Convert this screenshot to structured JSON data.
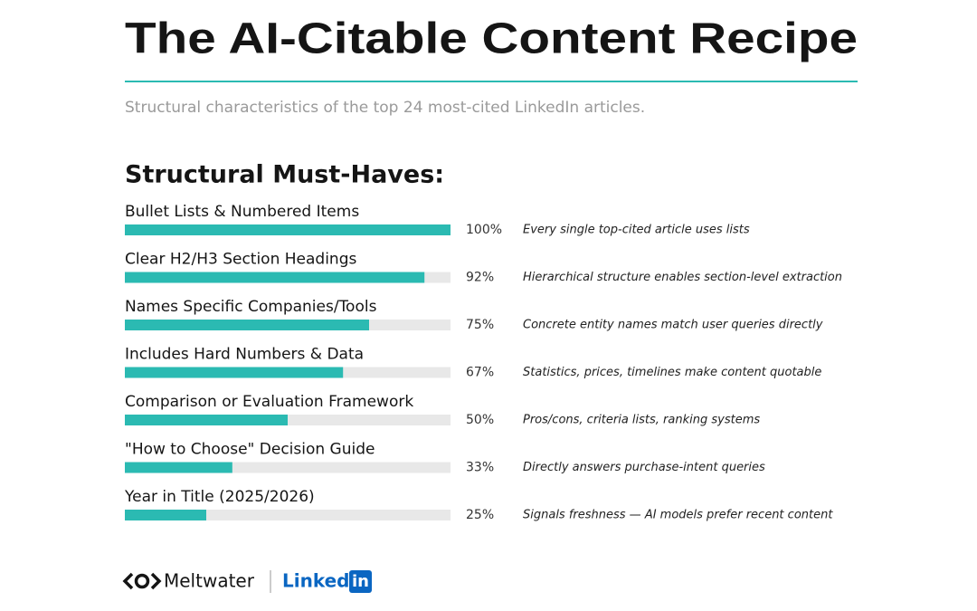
{
  "chart_data": {
    "type": "hbar",
    "title": "The AI-Citable Content Recipe",
    "subtitle": "Structural characteristics of the top 24 most-cited LinkedIn articles.",
    "section_heading": "Structural Must-Haves:",
    "categories": [
      "Bullet Lists & Numbered Items",
      "Clear H2/H3 Section Headings",
      "Names Specific Companies/Tools",
      "Includes Hard Numbers & Data",
      "Comparison or Evaluation Framework",
      "\"How to Choose\" Decision Guide",
      "Year in Title (2025/2026)"
    ],
    "values": [
      100,
      92,
      75,
      67,
      50,
      33,
      25
    ],
    "value_labels": [
      "100%",
      "92%",
      "75%",
      "67%",
      "50%",
      "33%",
      "25%"
    ],
    "notes": [
      "Every single top-cited article uses lists",
      "Hierarchical structure enables section-level extraction",
      "Concrete entity names match user queries directly",
      "Statistics, prices, timelines make content quotable",
      "Pros/cons, criteria lists, ranking systems",
      "Directly answers purchase-intent queries",
      "Signals freshness — AI models prefer recent content"
    ],
    "xlim": [
      0,
      100
    ],
    "color": "#2bbab2",
    "track_color": "#e8e8e8",
    "brands": {
      "meltwater": "Meltwater",
      "linkedin": "Linked",
      "linkedin_box": "in"
    }
  }
}
